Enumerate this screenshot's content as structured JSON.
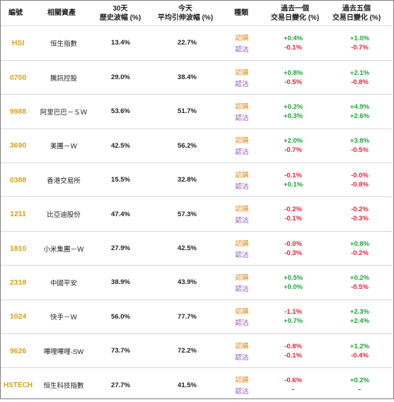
{
  "headers": {
    "code": "編號",
    "asset": "相關資產",
    "hv_line1": "30天",
    "hv_line2": "歷史波幅 (%)",
    "iv_line1": "今天",
    "iv_line2": "平均引伸波幅 (%)",
    "type": "種類",
    "chg1_line1": "過去一個",
    "chg1_line2": "交易日變化 (%)",
    "chg5_line1": "過去五個",
    "chg5_line2": "交易日變化 (%)"
  },
  "rows": [
    {
      "code": "HSI",
      "name": "恒生指數",
      "hv": "13.4%",
      "iv": "22.7%",
      "call": "認購",
      "put": "認沽",
      "c1": "+0.4%",
      "p1": "-0.1%",
      "c5": "+1.0%",
      "p5": "-0.7%"
    },
    {
      "code": "0700",
      "name": "騰訊控股",
      "hv": "29.0%",
      "iv": "38.4%",
      "call": "認購",
      "put": "認沽",
      "c1": "+0.8%",
      "p1": "-0.5%",
      "c5": "+2.1%",
      "p5": "-0.8%"
    },
    {
      "code": "9988",
      "name": "阿里巴巴－ＳＷ",
      "hv": "53.6%",
      "iv": "51.7%",
      "call": "認購",
      "put": "認沽",
      "c1": "+0.2%",
      "p1": "+0.3%",
      "c5": "+4.9%",
      "p5": "+2.6%"
    },
    {
      "code": "3690",
      "name": "美團－Ｗ",
      "hv": "42.5%",
      "iv": "56.2%",
      "call": "認購",
      "put": "認沽",
      "c1": "+2.0%",
      "p1": "-0.7%",
      "c5": "+3.8%",
      "p5": "-0.5%"
    },
    {
      "code": "0388",
      "name": "香港交易所",
      "hv": "15.5%",
      "iv": "32.8%",
      "call": "認購",
      "put": "認沽",
      "c1": "-0.1%",
      "p1": "+0.1%",
      "c5": "-0.0%",
      "p5": "-0.8%"
    },
    {
      "code": "1211",
      "name": "比亞迪股份",
      "hv": "47.4%",
      "iv": "57.3%",
      "call": "認購",
      "put": "認沽",
      "c1": "-0.2%",
      "p1": "-0.1%",
      "c5": "-0.2%",
      "p5": "-0.3%"
    },
    {
      "code": "1810",
      "name": "小米集團－Ｗ",
      "hv": "27.9%",
      "iv": "42.5%",
      "call": "認購",
      "put": "認沽",
      "c1": "-0.0%",
      "p1": "-0.3%",
      "c5": "+0.8%",
      "p5": "-0.2%"
    },
    {
      "code": "2318",
      "name": "中國平安",
      "hv": "38.9%",
      "iv": "43.9%",
      "call": "認購",
      "put": "認沽",
      "c1": "+0.5%",
      "p1": "+0.0%",
      "c5": "+0.2%",
      "p5": "-0.5%"
    },
    {
      "code": "1024",
      "name": "快手－Ｗ",
      "hv": "56.0%",
      "iv": "77.7%",
      "call": "認購",
      "put": "認沽",
      "c1": "-1.1%",
      "p1": "+0.7%",
      "c5": "+2.3%",
      "p5": "+2.4%"
    },
    {
      "code": "9626",
      "name": "嗶哩嗶哩-SW",
      "hv": "73.7%",
      "iv": "72.2%",
      "call": "認購",
      "put": "認沽",
      "c1": "-0.8%",
      "p1": "-0.1%",
      "c5": "+1.2%",
      "p5": "-0.4%"
    },
    {
      "code": "HSTECH",
      "name": "恒生科技指數",
      "hv": "27.7%",
      "iv": "41.5%",
      "call": "認購",
      "put": "認沽",
      "c1": "-0.6%",
      "p1": "-",
      "c5": "+0.2%",
      "p5": "-"
    }
  ],
  "colors": {
    "code": "#d4a21c",
    "call_label": "#e08a1e",
    "put_label": "#8b4fb6",
    "positive": "#21a33a",
    "negative": "#e0253a"
  }
}
